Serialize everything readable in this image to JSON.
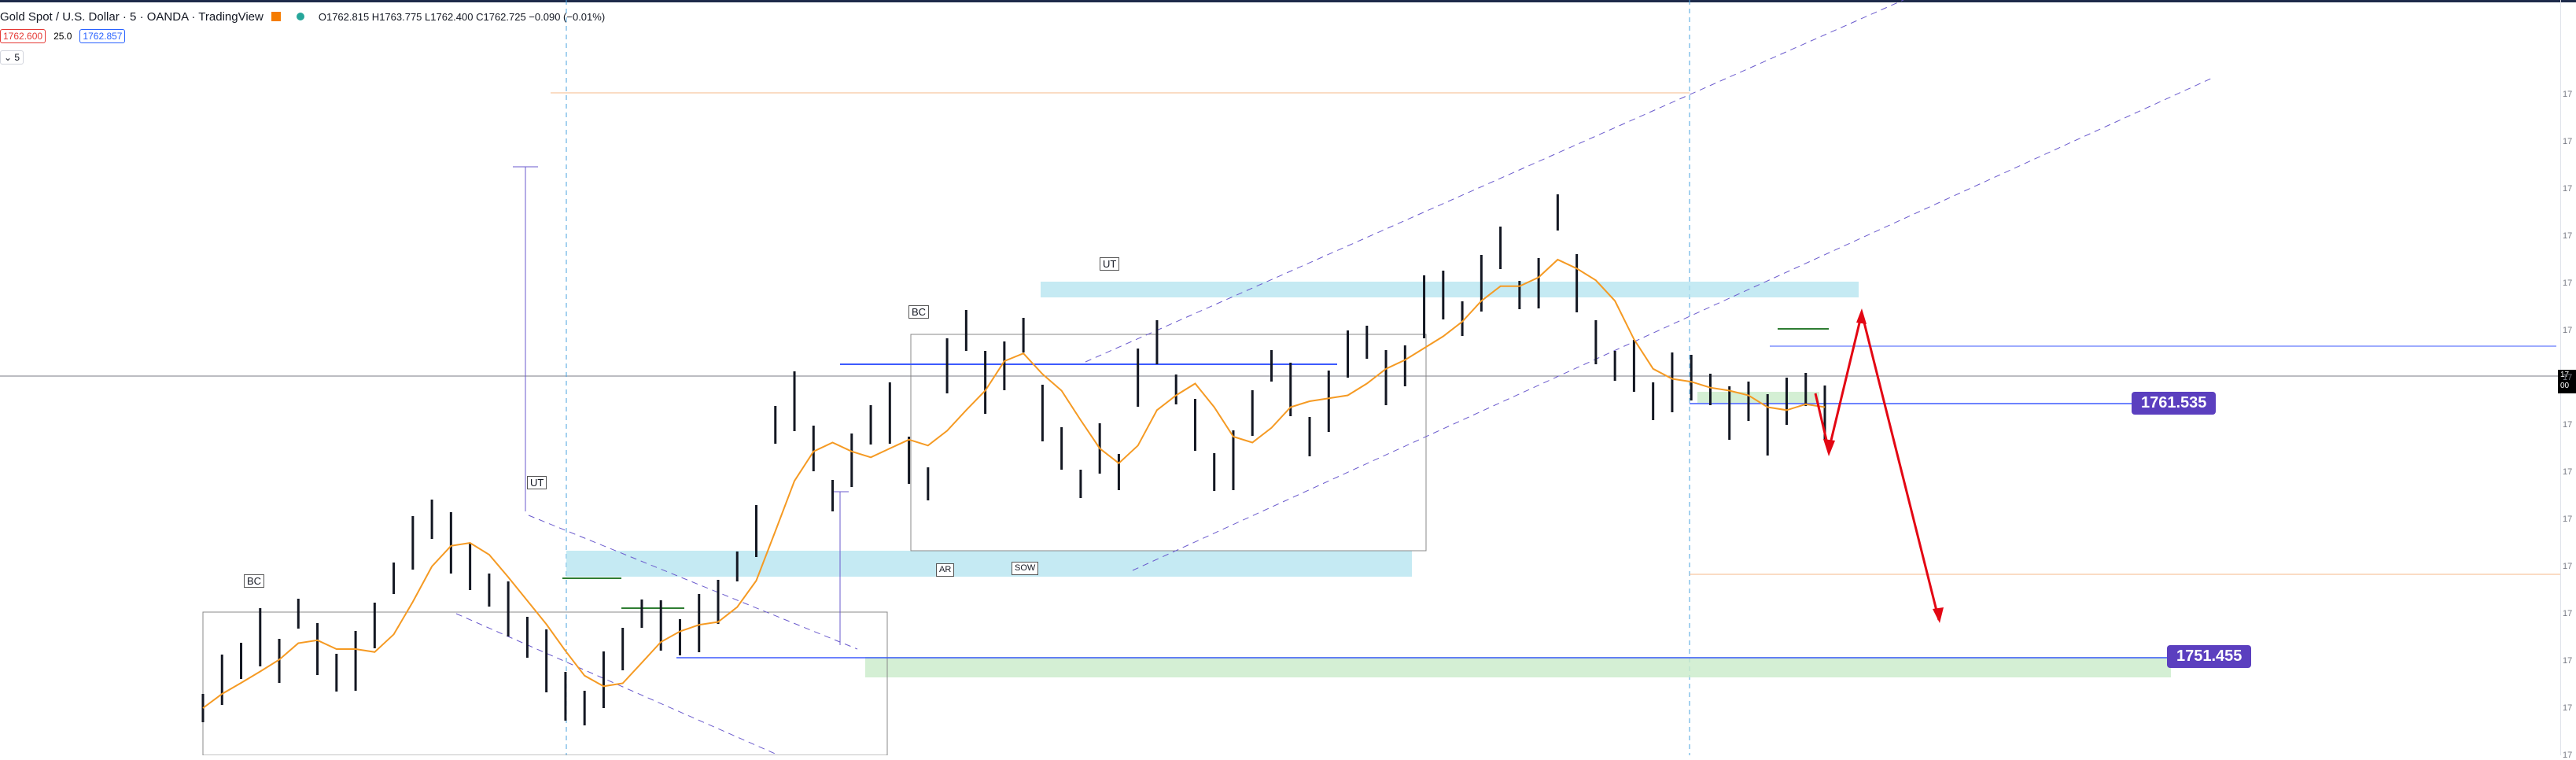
{
  "legend": {
    "title": "Gold Spot / U.S. Dollar · 5 · OANDA · TradingView",
    "ohlc": "O1762.815  H1763.775  L1762.400  C1762.725  −0.090 (−0.01%)"
  },
  "quote": {
    "sell": "1762.600",
    "spread": "25.0",
    "buy": "1762.857"
  },
  "indicator_label": "5",
  "annotations": {
    "bc": "BC",
    "ut": "UT",
    "ar": "AR",
    "sow": "SOW"
  },
  "levels": {
    "support": "1761.535",
    "target": "1751.455"
  },
  "colors": {
    "price": "#131722",
    "ma": "#f59a23",
    "zone_blue": "#b2e3ef",
    "zone_green": "#c9ebc9",
    "level_badge": "#5b3fbf",
    "arrow": "#e30613",
    "channel": "#6a5acd",
    "hline": "#3d5afe"
  },
  "chart_data": {
    "type": "line",
    "title": "Gold Spot / U.S. Dollar · 5 · OANDA",
    "ylim": [
      1748,
      1776
    ],
    "series": [
      {
        "values": [
          1750.0,
          1751.2,
          1752.0,
          1753.0,
          1752.0,
          1754.0,
          1752.5,
          1751.5,
          1752.0,
          1753.5,
          1755.5,
          1757.0,
          1758.0,
          1757.0,
          1756.0,
          1755.0,
          1754.2,
          1753.0,
          1752.0,
          1750.5,
          1750.0,
          1751.2,
          1752.5,
          1754.0,
          1753.5,
          1753.0,
          1753.6,
          1754.5,
          1756.0,
          1757.5,
          1762.0,
          1763.0,
          1761.0,
          1759.0,
          1760.5,
          1762.0,
          1762.5,
          1760.5,
          1759.5,
          1764.5,
          1766.0,
          1763.8,
          1764.5,
          1765.8,
          1762.5,
          1761.0,
          1759.5,
          1761.0,
          1760.0,
          1764.0,
          1765.5,
          1763.5,
          1762.0,
          1760.0,
          1760.5,
          1762.5,
          1764.5,
          1763.5,
          1761.5,
          1763.0,
          1765.0,
          1765.5,
          1764.0,
          1764.5,
          1767.0,
          1767.5,
          1766.5,
          1768.0,
          1769.5,
          1767.5,
          1768.0,
          1771.0,
          1768.0,
          1765.5,
          1764.5,
          1764.5,
          1763.0,
          1763.8,
          1764.0,
          1763.5,
          1762.5,
          1763.0,
          1762.0,
          1763.0,
          1763.5,
          1762.5
        ]
      }
    ]
  }
}
